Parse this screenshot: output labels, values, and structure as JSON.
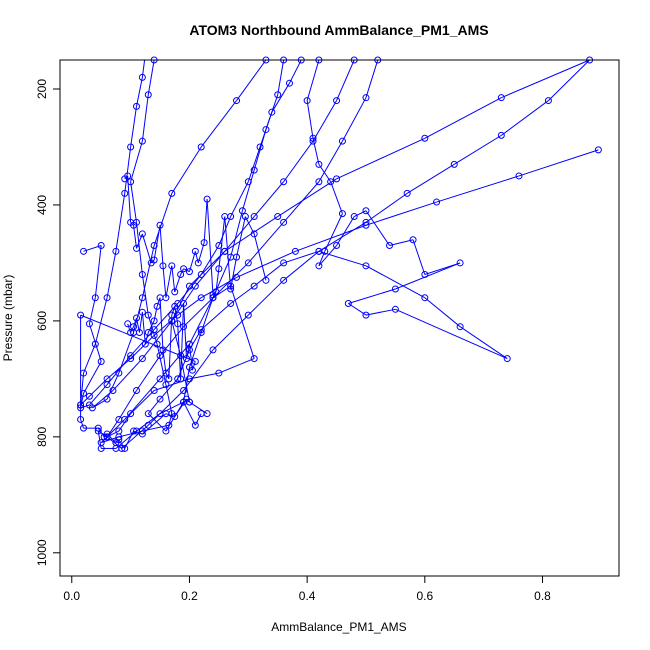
{
  "chart_data": {
    "type": "line",
    "title": "ATOM3 Northbound AmmBalance_PM1_AMS",
    "xlabel": "AmmBalance_PM1_AMS",
    "ylabel": "Pressure (mbar)",
    "xlim": [
      -0.02,
      0.93
    ],
    "ylim": [
      1040,
      150
    ],
    "x_ticks": [
      "0.0",
      "0.2",
      "0.4",
      "0.6",
      "0.8"
    ],
    "x_tick_values": [
      0,
      0.2,
      0.4,
      0.6,
      0.8
    ],
    "y_ticks": [
      "200",
      "400",
      "600",
      "800",
      "1000"
    ],
    "y_tick_values": [
      200,
      400,
      600,
      800,
      1000
    ],
    "color": "#0000ff",
    "series": [
      {
        "name": "",
        "points": [
          [
            0.015,
            745
          ],
          [
            0.02,
            690
          ],
          [
            0.04,
            640
          ],
          [
            0.06,
            560
          ],
          [
            0.075,
            480
          ],
          [
            0.09,
            380
          ],
          [
            0.1,
            300
          ],
          [
            0.11,
            230
          ],
          [
            0.12,
            180
          ],
          [
            0.125,
            140
          ],
          [
            0.14,
            150
          ],
          [
            0.13,
            210
          ],
          [
            0.12,
            290
          ],
          [
            0.1,
            360
          ],
          [
            0.11,
            430
          ],
          [
            0.12,
            520
          ],
          [
            0.13,
            590
          ],
          [
            0.145,
            640
          ],
          [
            0.16,
            710
          ],
          [
            0.17,
            760
          ],
          [
            0.165,
            780
          ],
          [
            0.12,
            790
          ],
          [
            0.08,
            800
          ],
          [
            0.05,
            810
          ],
          [
            0.09,
            770
          ],
          [
            0.15,
            700
          ],
          [
            0.2,
            640
          ],
          [
            0.24,
            560
          ],
          [
            0.27,
            490
          ],
          [
            0.29,
            410
          ],
          [
            0.31,
            340
          ],
          [
            0.33,
            270
          ],
          [
            0.35,
            210
          ],
          [
            0.36,
            150
          ],
          [
            0.33,
            150
          ],
          [
            0.28,
            220
          ],
          [
            0.22,
            300
          ],
          [
            0.17,
            380
          ],
          [
            0.14,
            470
          ],
          [
            0.12,
            560
          ],
          [
            0.105,
            620
          ],
          [
            0.08,
            690
          ],
          [
            0.06,
            735
          ],
          [
            0.035,
            750
          ],
          [
            0.07,
            720
          ],
          [
            0.12,
            665
          ],
          [
            0.17,
            600
          ],
          [
            0.21,
            540
          ],
          [
            0.26,
            480
          ],
          [
            0.31,
            420
          ],
          [
            0.36,
            360
          ],
          [
            0.41,
            290
          ],
          [
            0.45,
            220
          ],
          [
            0.48,
            150
          ],
          [
            0.52,
            150
          ],
          [
            0.5,
            215
          ],
          [
            0.46,
            290
          ],
          [
            0.42,
            360
          ],
          [
            0.36,
            430
          ],
          [
            0.3,
            500
          ],
          [
            0.24,
            560
          ],
          [
            0.19,
            610
          ],
          [
            0.15,
            660
          ],
          [
            0.11,
            720
          ],
          [
            0.08,
            770
          ],
          [
            0.06,
            800
          ],
          [
            0.085,
            820
          ],
          [
            0.13,
            780
          ],
          [
            0.19,
            720
          ],
          [
            0.24,
            650
          ],
          [
            0.3,
            590
          ],
          [
            0.36,
            530
          ],
          [
            0.42,
            480
          ],
          [
            0.5,
            430
          ],
          [
            0.57,
            380
          ],
          [
            0.65,
            330
          ],
          [
            0.73,
            280
          ],
          [
            0.81,
            220
          ],
          [
            0.88,
            150
          ],
          [
            0.73,
            215
          ],
          [
            0.6,
            285
          ],
          [
            0.45,
            355
          ],
          [
            0.35,
            420
          ],
          [
            0.26,
            480
          ],
          [
            0.2,
            540
          ],
          [
            0.17,
            600
          ],
          [
            0.185,
            660
          ],
          [
            0.2,
            740
          ],
          [
            0.23,
            760
          ]
        ]
      },
      {
        "name": "",
        "points": [
          [
            0.02,
            480
          ],
          [
            0.05,
            470
          ],
          [
            0.04,
            560
          ],
          [
            0.03,
            605
          ],
          [
            0.05,
            670
          ],
          [
            0.02,
            725
          ],
          [
            0.015,
            750
          ],
          [
            0.03,
            745
          ],
          [
            0.06,
            710
          ],
          [
            0.1,
            660
          ],
          [
            0.14,
            615
          ],
          [
            0.18,
            570
          ],
          [
            0.22,
            520
          ],
          [
            0.25,
            470
          ],
          [
            0.27,
            420
          ],
          [
            0.3,
            360
          ],
          [
            0.32,
            300
          ],
          [
            0.34,
            240
          ],
          [
            0.37,
            190
          ],
          [
            0.39,
            150
          ],
          [
            0.42,
            150
          ],
          [
            0.4,
            220
          ],
          [
            0.41,
            285
          ],
          [
            0.42,
            330
          ],
          [
            0.44,
            360
          ],
          [
            0.46,
            415
          ],
          [
            0.43,
            480
          ],
          [
            0.42,
            505
          ],
          [
            0.45,
            470
          ],
          [
            0.48,
            420
          ],
          [
            0.5,
            410
          ],
          [
            0.54,
            470
          ],
          [
            0.58,
            460
          ],
          [
            0.6,
            520
          ],
          [
            0.66,
            500
          ],
          [
            0.55,
            545
          ],
          [
            0.47,
            570
          ],
          [
            0.5,
            590
          ],
          [
            0.55,
            580
          ],
          [
            0.74,
            665
          ],
          [
            0.66,
            610
          ],
          [
            0.6,
            560
          ],
          [
            0.5,
            505
          ],
          [
            0.42,
            480
          ],
          [
            0.36,
            500
          ],
          [
            0.31,
            540
          ],
          [
            0.27,
            570
          ],
          [
            0.22,
            615
          ],
          [
            0.2,
            650
          ],
          [
            0.18,
            700
          ],
          [
            0.15,
            735
          ],
          [
            0.13,
            760
          ],
          [
            0.16,
            790
          ],
          [
            0.19,
            740
          ],
          [
            0.2,
            680
          ],
          [
            0.22,
            620
          ],
          [
            0.24,
            560
          ],
          [
            0.27,
            540
          ],
          [
            0.31,
            665
          ],
          [
            0.25,
            690
          ],
          [
            0.2,
            700
          ],
          [
            0.14,
            720
          ],
          [
            0.1,
            760
          ],
          [
            0.08,
            790
          ],
          [
            0.06,
            800
          ],
          [
            0.045,
            790
          ],
          [
            0.05,
            820
          ],
          [
            0.075,
            820
          ],
          [
            0.11,
            790
          ],
          [
            0.15,
            760
          ],
          [
            0.19,
            740
          ],
          [
            0.21,
            780
          ],
          [
            0.22,
            760
          ]
        ]
      },
      {
        "name": "",
        "points": [
          [
            0.895,
            305
          ],
          [
            0.76,
            350
          ],
          [
            0.62,
            395
          ],
          [
            0.5,
            435
          ],
          [
            0.38,
            480
          ],
          [
            0.28,
            525
          ],
          [
            0.22,
            560
          ],
          [
            0.18,
            590
          ],
          [
            0.14,
            625
          ],
          [
            0.1,
            665
          ],
          [
            0.06,
            700
          ],
          [
            0.03,
            730
          ],
          [
            0.015,
            745
          ]
        ]
      },
      {
        "name": "",
        "points": [
          [
            0.09,
            355
          ],
          [
            0.095,
            350
          ],
          [
            0.1,
            430
          ],
          [
            0.105,
            435
          ],
          [
            0.11,
            475
          ],
          [
            0.12,
            450
          ],
          [
            0.135,
            500
          ],
          [
            0.14,
            495
          ],
          [
            0.15,
            435
          ],
          [
            0.155,
            505
          ],
          [
            0.16,
            560
          ],
          [
            0.17,
            505
          ],
          [
            0.175,
            550
          ],
          [
            0.185,
            520
          ],
          [
            0.19,
            510
          ],
          [
            0.2,
            515
          ],
          [
            0.21,
            480
          ],
          [
            0.215,
            500
          ],
          [
            0.225,
            465
          ],
          [
            0.23,
            390
          ],
          [
            0.24,
            555
          ],
          [
            0.245,
            550
          ],
          [
            0.25,
            510
          ],
          [
            0.26,
            420
          ],
          [
            0.27,
            545
          ],
          [
            0.28,
            490
          ],
          [
            0.295,
            420
          ],
          [
            0.31,
            450
          ],
          [
            0.33,
            530
          ]
        ]
      },
      {
        "name": "",
        "points": [
          [
            0.095,
            605
          ],
          [
            0.1,
            620
          ],
          [
            0.105,
            610
          ],
          [
            0.11,
            595
          ],
          [
            0.115,
            620
          ],
          [
            0.12,
            585
          ],
          [
            0.125,
            640
          ],
          [
            0.13,
            620
          ],
          [
            0.14,
            600
          ],
          [
            0.145,
            575
          ],
          [
            0.15,
            560
          ],
          [
            0.155,
            650
          ],
          [
            0.16,
            690
          ],
          [
            0.165,
            700
          ],
          [
            0.17,
            590
          ],
          [
            0.175,
            575
          ],
          [
            0.18,
            605
          ],
          [
            0.185,
            700
          ],
          [
            0.19,
            570
          ],
          [
            0.195,
            665
          ],
          [
            0.2,
            640
          ],
          [
            0.205,
            685
          ],
          [
            0.21,
            670
          ],
          [
            0.015,
            590
          ],
          [
            0.015,
            770
          ],
          [
            0.02,
            785
          ],
          [
            0.045,
            785
          ],
          [
            0.055,
            800
          ],
          [
            0.06,
            795
          ],
          [
            0.075,
            810
          ],
          [
            0.08,
            805
          ],
          [
            0.09,
            820
          ],
          [
            0.105,
            790
          ],
          [
            0.12,
            795
          ],
          [
            0.16,
            760
          ],
          [
            0.175,
            765
          ],
          [
            0.195,
            735
          ],
          [
            0.2,
            740
          ]
        ]
      }
    ]
  }
}
